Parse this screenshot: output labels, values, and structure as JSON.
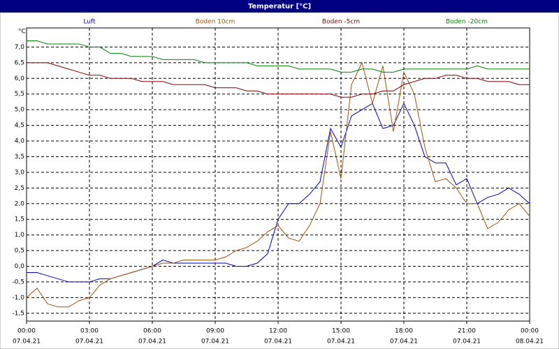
{
  "chart_data": {
    "type": "line",
    "title": "Temperatur [°C]",
    "ylabel": "°C",
    "x": [
      0,
      0.5,
      1,
      1.5,
      2,
      2.5,
      3,
      3.5,
      4,
      4.5,
      5,
      5.5,
      6,
      6.5,
      7,
      7.5,
      8,
      8.5,
      9,
      9.5,
      10,
      10.5,
      11,
      11.5,
      12,
      12.5,
      13,
      13.5,
      14,
      14.5,
      15,
      15.5,
      16,
      16.5,
      17,
      17.5,
      18,
      18.5,
      19,
      19.5,
      20,
      20.5,
      21,
      21.5,
      22,
      22.5,
      23,
      23.5,
      24
    ],
    "series": [
      {
        "name": "Luft",
        "color": "#0000c0",
        "values": [
          -0.2,
          -0.2,
          -0.3,
          -0.4,
          -0.5,
          -0.5,
          -0.5,
          -0.4,
          -0.4,
          -0.3,
          -0.2,
          -0.1,
          0.0,
          0.2,
          0.1,
          0.1,
          0.1,
          0.1,
          0.1,
          0.1,
          0.0,
          0.0,
          0.1,
          0.4,
          1.5,
          2.0,
          2.0,
          2.3,
          2.7,
          4.4,
          3.8,
          4.8,
          5.0,
          5.2,
          4.4,
          4.5,
          5.2,
          4.5,
          3.5,
          3.3,
          3.3,
          2.6,
          2.8,
          2.0,
          2.2,
          2.3,
          2.5,
          2.3,
          2.0
        ]
      },
      {
        "name": "Boden 10cm",
        "color": "#a0520a",
        "values": [
          -1.0,
          -0.7,
          -1.2,
          -1.3,
          -1.3,
          -1.1,
          -1.0,
          -0.6,
          -0.4,
          -0.3,
          -0.2,
          -0.1,
          0.0,
          0.1,
          0.1,
          0.2,
          0.2,
          0.2,
          0.2,
          0.3,
          0.5,
          0.6,
          0.8,
          1.1,
          1.3,
          0.9,
          0.8,
          1.3,
          2.0,
          4.3,
          2.8,
          5.8,
          6.5,
          5.2,
          6.4,
          4.3,
          6.2,
          5.5,
          3.8,
          2.7,
          2.8,
          2.5,
          2.0,
          2.0,
          1.2,
          1.4,
          1.8,
          2.0,
          1.6
        ]
      },
      {
        "name": "Boden -5cm",
        "color": "#800000",
        "values": [
          6.5,
          6.5,
          6.5,
          6.4,
          6.3,
          6.2,
          6.1,
          6.1,
          6.0,
          6.0,
          6.0,
          5.9,
          5.9,
          5.9,
          5.8,
          5.8,
          5.8,
          5.8,
          5.7,
          5.7,
          5.7,
          5.6,
          5.6,
          5.5,
          5.5,
          5.5,
          5.5,
          5.5,
          5.5,
          5.5,
          5.4,
          5.4,
          5.5,
          5.5,
          5.6,
          5.6,
          5.8,
          5.9,
          6.0,
          6.0,
          6.1,
          6.1,
          6.0,
          6.0,
          5.9,
          5.9,
          5.9,
          5.8,
          5.8
        ]
      },
      {
        "name": "Boden -20cm",
        "color": "#008000",
        "values": [
          7.2,
          7.2,
          7.1,
          7.1,
          7.1,
          7.1,
          7.0,
          7.0,
          6.8,
          6.8,
          6.7,
          6.7,
          6.7,
          6.6,
          6.6,
          6.6,
          6.6,
          6.5,
          6.5,
          6.5,
          6.5,
          6.5,
          6.4,
          6.4,
          6.4,
          6.4,
          6.3,
          6.3,
          6.3,
          6.3,
          6.2,
          6.2,
          6.3,
          6.3,
          6.2,
          6.2,
          6.3,
          6.3,
          6.3,
          6.3,
          6.3,
          6.3,
          6.3,
          6.4,
          6.3,
          6.3,
          6.3,
          6.3,
          6.3
        ]
      }
    ],
    "xlim": [
      0,
      24
    ],
    "xticks": [
      {
        "value": 0,
        "label": "00:00"
      },
      {
        "value": 3,
        "label": "03:00"
      },
      {
        "value": 6,
        "label": "06:00"
      },
      {
        "value": 9,
        "label": "09:00"
      },
      {
        "value": 12,
        "label": "12:00"
      },
      {
        "value": 15,
        "label": "15:00"
      },
      {
        "value": 18,
        "label": "18:00"
      },
      {
        "value": 21,
        "label": "21:00"
      },
      {
        "value": 24,
        "label": "00:00"
      }
    ],
    "xtick_dates": [
      "07.04.21",
      "07.04.21",
      "07.04.21",
      "07.04.21",
      "07.04.21",
      "07.04.21",
      "07.04.21",
      "07.04.21",
      "08.04.21"
    ],
    "ylim": [
      -1.75,
      7.5
    ],
    "yticks": [
      {
        "value": 7,
        "label": "7,0"
      },
      {
        "value": 6.5,
        "label": "6,5"
      },
      {
        "value": 6,
        "label": "6,0"
      },
      {
        "value": 5.5,
        "label": "5,5"
      },
      {
        "value": 5,
        "label": "5,0"
      },
      {
        "value": 4.5,
        "label": "4,5"
      },
      {
        "value": 4,
        "label": "4,0"
      },
      {
        "value": 3.5,
        "label": "3,5"
      },
      {
        "value": 3,
        "label": "3,0"
      },
      {
        "value": 2.5,
        "label": "2,5"
      },
      {
        "value": 2,
        "label": "2,0"
      },
      {
        "value": 1.5,
        "label": "1,5"
      },
      {
        "value": 1,
        "label": "1,0"
      },
      {
        "value": 0.5,
        "label": "0,5"
      },
      {
        "value": 0,
        "label": "0,0"
      },
      {
        "value": -0.5,
        "label": "-0,5"
      },
      {
        "value": -1,
        "label": "-1,0"
      },
      {
        "value": -1.5,
        "label": "-1,5"
      }
    ],
    "grid": true,
    "legend": "top"
  }
}
